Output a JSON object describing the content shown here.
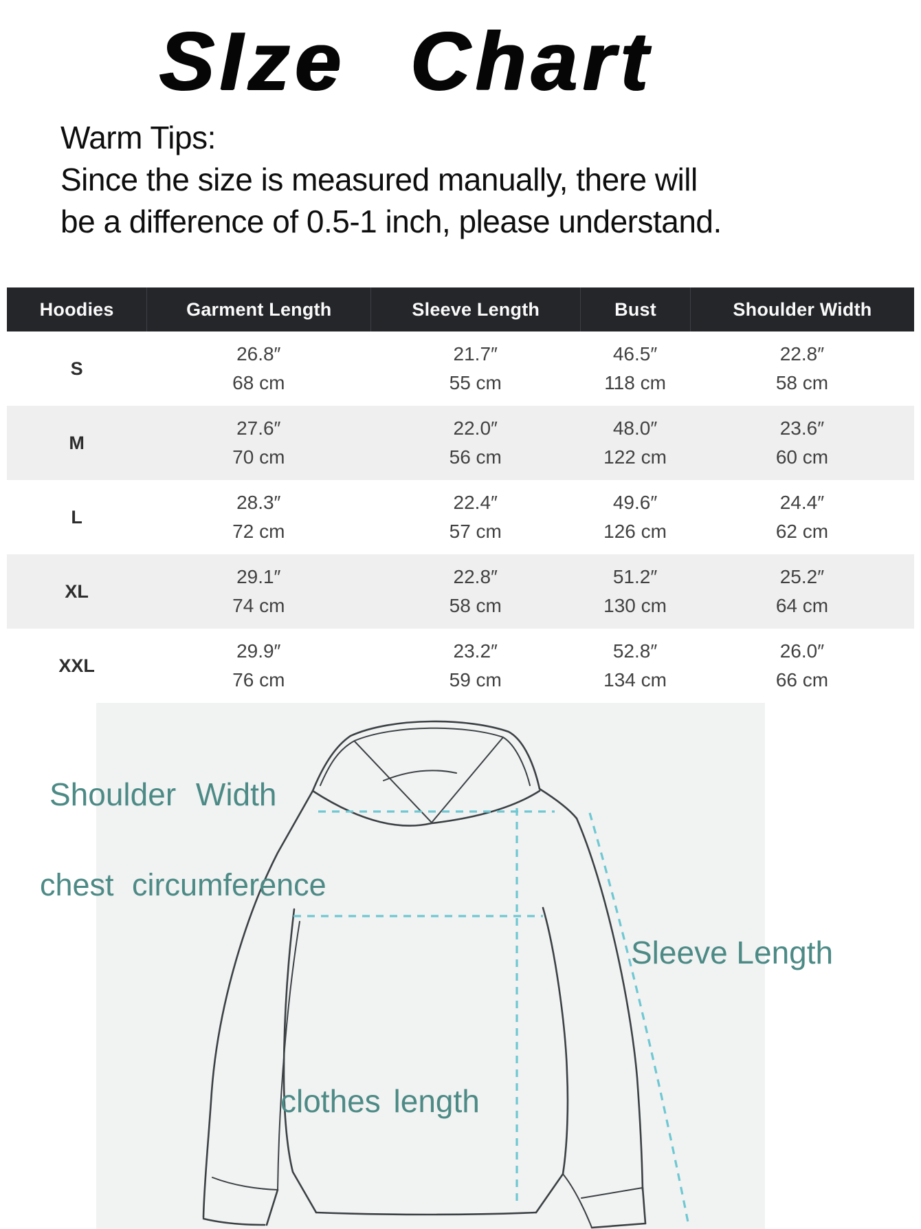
{
  "title": "SIze Chart",
  "warm_tips": {
    "heading": "Warm Tips:",
    "line1": "Since the size is measured manually, there will",
    "line2": "be a difference of 0.5-1 inch, please understand."
  },
  "size_table": {
    "columns": [
      "Hoodies",
      "Garment Length",
      "Sleeve Length",
      "Bust",
      "Shoulder Width"
    ],
    "rows": [
      {
        "size": "S",
        "garment_in": "26.8″",
        "garment_cm": "68 cm",
        "sleeve_in": "21.7″",
        "sleeve_cm": "55 cm",
        "bust_in": "46.5″",
        "bust_cm": "118 cm",
        "shoulder_in": "22.8″",
        "shoulder_cm": "58 cm"
      },
      {
        "size": "M",
        "garment_in": "27.6″",
        "garment_cm": "70 cm",
        "sleeve_in": "22.0″",
        "sleeve_cm": "56 cm",
        "bust_in": "48.0″",
        "bust_cm": "122 cm",
        "shoulder_in": "23.6″",
        "shoulder_cm": "60 cm"
      },
      {
        "size": "L",
        "garment_in": "28.3″",
        "garment_cm": "72 cm",
        "sleeve_in": "22.4″",
        "sleeve_cm": "57 cm",
        "bust_in": "49.6″",
        "bust_cm": "126 cm",
        "shoulder_in": "24.4″",
        "shoulder_cm": "62 cm"
      },
      {
        "size": "XL",
        "garment_in": "29.1″",
        "garment_cm": "74 cm",
        "sleeve_in": "22.8″",
        "sleeve_cm": "58 cm",
        "bust_in": "51.2″",
        "bust_cm": "130 cm",
        "shoulder_in": "25.2″",
        "shoulder_cm": "64 cm"
      },
      {
        "size": "XXL",
        "garment_in": "29.9″",
        "garment_cm": "76 cm",
        "sleeve_in": "23.2″",
        "sleeve_cm": "59 cm",
        "bust_in": "52.8″",
        "bust_cm": "134 cm",
        "shoulder_in": "26.0″",
        "shoulder_cm": "66 cm"
      }
    ]
  },
  "diagram": {
    "labels": {
      "shoulder": "Shoulder Width",
      "chest": "chest  circumference",
      "sleeve": "Sleeve Length",
      "clothes": "clothes length"
    }
  },
  "colors": {
    "accent_teal": "#4c8a85",
    "dashed": "#6fc8d2",
    "header_bg": "#25262a",
    "row_alt": "#efefef",
    "outline": "#3c4144",
    "diagram_bg": "#f1f2f2"
  }
}
